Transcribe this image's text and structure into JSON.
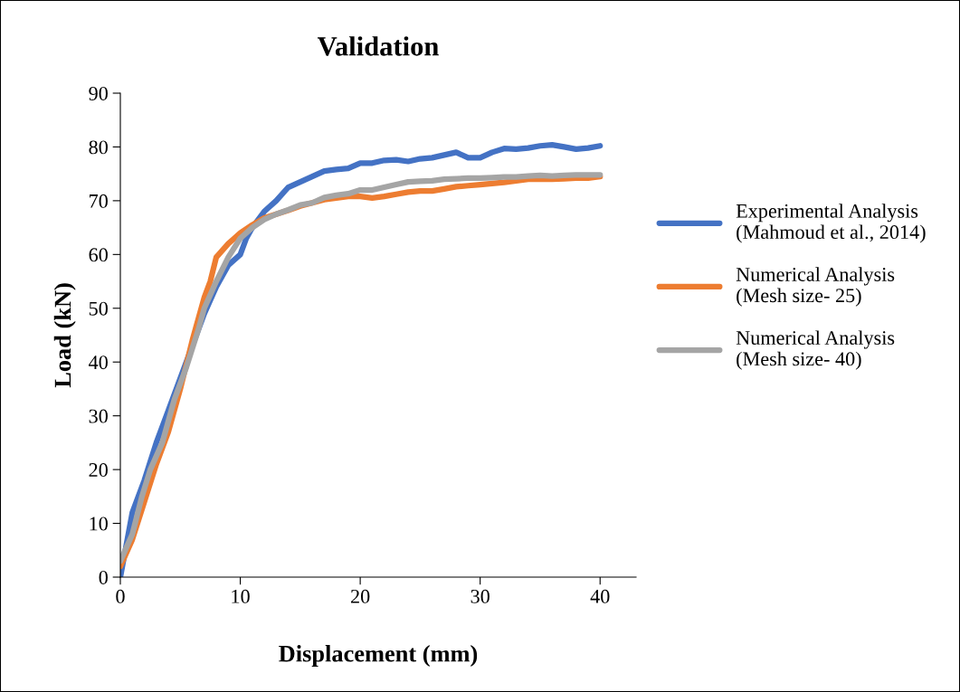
{
  "chart_data": {
    "type": "line",
    "title": "Validation",
    "xlabel": "Displacement (mm)",
    "ylabel": "Load (kN)",
    "xlim": [
      0,
      43
    ],
    "xticks": [
      0,
      10,
      20,
      30,
      40
    ],
    "ylim": [
      0,
      90
    ],
    "yticks": [
      0,
      10,
      20,
      30,
      40,
      50,
      60,
      70,
      80,
      90
    ],
    "grid": false,
    "legend": "right",
    "marker": "none",
    "line_style": "solid",
    "series": [
      {
        "name": "Experimental Analysis\n(Mahmoud et al., 2014)",
        "color": "#4472c4",
        "x": [
          0,
          0.5,
          1,
          2,
          3,
          4,
          5,
          7,
          8,
          9,
          10,
          10.5,
          11,
          12,
          13,
          14,
          15,
          16,
          17,
          18,
          19,
          20,
          21,
          22,
          23,
          24,
          25,
          26,
          27,
          28,
          29,
          30,
          31,
          32,
          33,
          34,
          35,
          36,
          37,
          38,
          39,
          40
        ],
        "values": [
          0,
          6,
          12,
          18,
          25,
          31,
          37,
          49,
          54,
          58,
          60,
          63,
          65,
          68,
          70,
          72.5,
          73.5,
          74.5,
          75.5,
          75.8,
          76,
          77,
          77,
          77.5,
          77.6,
          77.3,
          77.8,
          78,
          78.5,
          79,
          78,
          78,
          79,
          79.7,
          79.6,
          79.8,
          80.2,
          80.4,
          80,
          79.6,
          79.8,
          80.2
        ]
      },
      {
        "name": "Numerical Analysis\n(Mesh size- 25)",
        "color": "#ed7d31",
        "x": [
          0,
          1,
          2,
          3,
          4,
          5,
          6,
          7,
          7.5,
          8,
          9,
          10,
          11,
          12,
          13,
          14,
          15,
          16,
          17,
          18,
          19,
          20,
          21,
          22,
          23,
          24,
          25,
          26,
          27,
          28,
          29,
          30,
          31,
          32,
          33,
          34,
          35,
          36,
          37,
          38,
          39,
          40
        ],
        "values": [
          2,
          7,
          14,
          21,
          27,
          35,
          44,
          52,
          55,
          59.5,
          62,
          64,
          65.5,
          66.8,
          67.5,
          68.2,
          69,
          69.6,
          70.2,
          70.5,
          70.8,
          70.8,
          70.5,
          70.8,
          71.2,
          71.6,
          71.8,
          71.8,
          72.2,
          72.6,
          72.8,
          73,
          73.2,
          73.4,
          73.7,
          74,
          74,
          74,
          74.1,
          74.2,
          74.2,
          74.5
        ]
      },
      {
        "name": "Numerical Analysis\n(Mesh size- 40)",
        "color": "#a5a5a5",
        "x": [
          0,
          1,
          1.8,
          2.5,
          3.5,
          4.5,
          5.5,
          6.5,
          7,
          8,
          9,
          10,
          11,
          12,
          13,
          14,
          15,
          16,
          17,
          18,
          19,
          20,
          21,
          22,
          23,
          24,
          25,
          26,
          27,
          28,
          29,
          30,
          31,
          32,
          33,
          34,
          35,
          36,
          37,
          38,
          39,
          40
        ],
        "values": [
          3,
          8,
          15,
          20,
          25,
          33,
          39,
          46,
          50,
          55,
          59.5,
          63,
          65,
          66.5,
          67.5,
          68.3,
          69.2,
          69.6,
          70.6,
          71,
          71.3,
          72,
          72,
          72.5,
          73,
          73.5,
          73.6,
          73.7,
          74,
          74.1,
          74.2,
          74.2,
          74.3,
          74.4,
          74.4,
          74.6,
          74.7,
          74.6,
          74.7,
          74.8,
          74.8,
          74.8
        ]
      }
    ]
  }
}
